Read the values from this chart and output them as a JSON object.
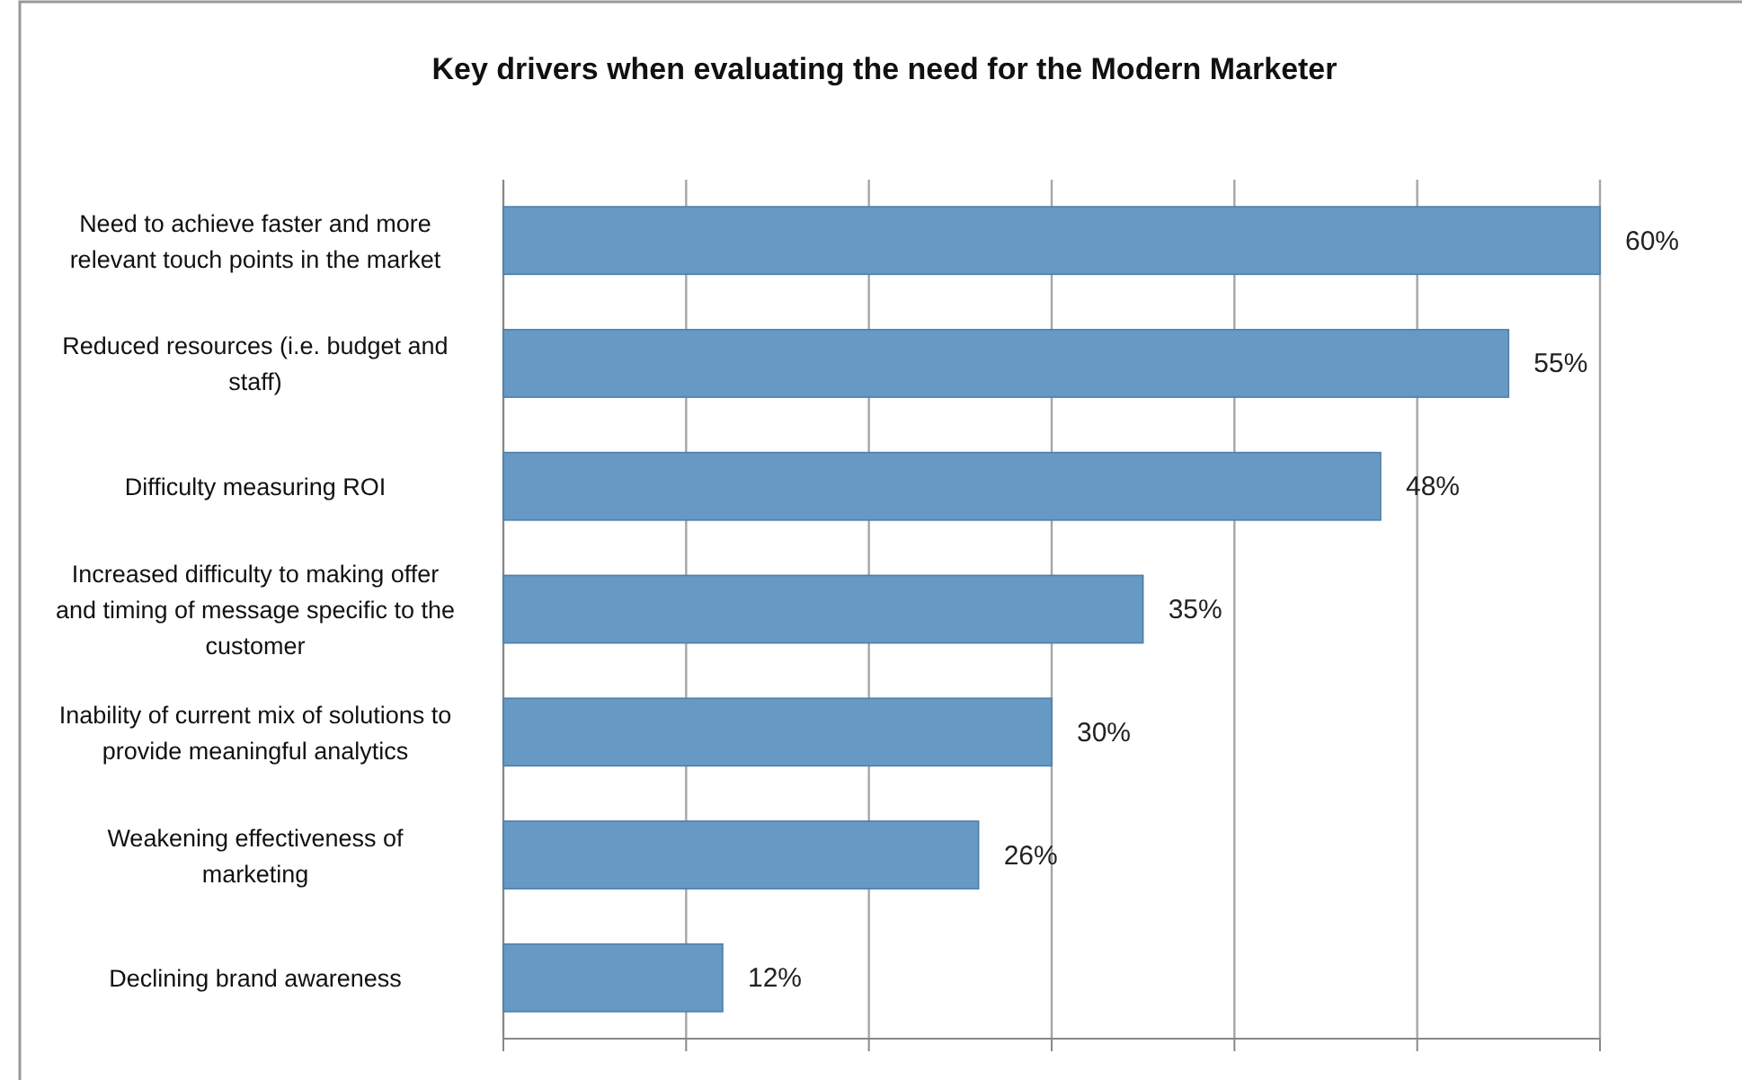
{
  "chart_data": {
    "type": "bar",
    "orientation": "horizontal",
    "title": "Key drivers when evaluating the need for the Modern Marketer",
    "categories": [
      "Need to achieve faster and more relevant touch points in the market",
      "Reduced resources (i.e. budget and staff)",
      "Difficulty measuring ROI",
      "Increased difficulty to making offer and timing of message specific to the customer",
      "Inability of current mix of solutions to provide meaningful analytics",
      "Weakening effectiveness of marketing",
      "Declining brand awareness"
    ],
    "values": [
      60,
      55,
      48,
      35,
      30,
      26,
      12
    ],
    "value_labels": [
      "60%",
      "55%",
      "48%",
      "35%",
      "30%",
      "26%",
      "12%"
    ],
    "color": "#6699c4",
    "xlim": [
      0,
      60
    ],
    "xticks": [
      {
        "value": 0,
        "label": null
      },
      {
        "value": 10,
        "label": null
      },
      {
        "value": 20,
        "label": null
      },
      {
        "value": 30,
        "label": null
      },
      {
        "value": 40,
        "label": null
      },
      {
        "value": 50,
        "label": null
      },
      {
        "value": 60,
        "label": null
      }
    ],
    "grid": "x",
    "tick_labels": "y"
  }
}
